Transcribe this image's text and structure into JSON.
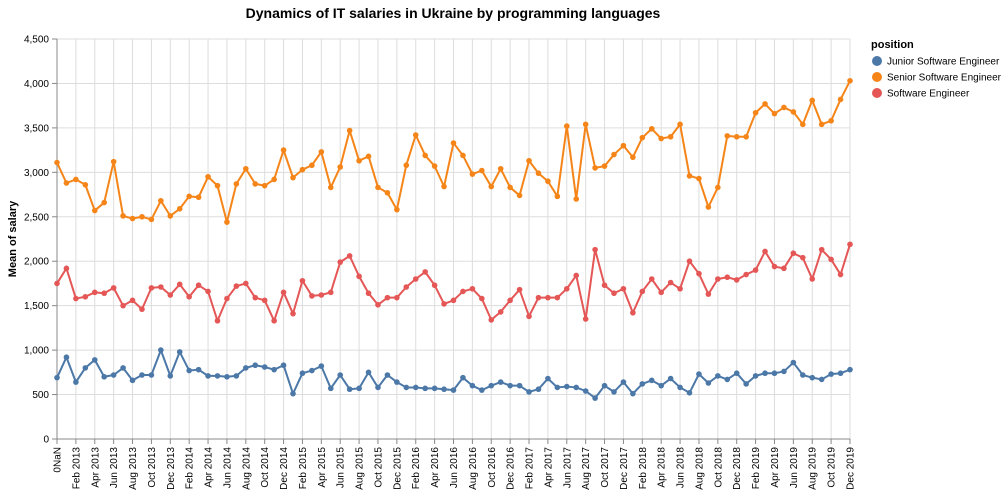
{
  "chart_data": {
    "type": "line",
    "title": "Dynamics of IT salaries in Ukraine by programming languages",
    "xlabel": "",
    "ylabel": "Mean of salary",
    "ylim": [
      0,
      4500
    ],
    "y_ticks": [
      "0",
      "500",
      "1,000",
      "1,500",
      "2,000",
      "2,500",
      "3,000",
      "3,500",
      "4,000",
      "4,500"
    ],
    "x_tick_labels": [
      "0NaN",
      "Feb 2013",
      "Apr 2013",
      "Jun 2013",
      "Aug 2013",
      "Oct 2013",
      "Dec 2013",
      "Feb 2014",
      "Apr 2014",
      "Jun 2014",
      "Aug 2014",
      "Oct 2014",
      "Dec 2014",
      "Feb 2015",
      "Apr 2015",
      "Jun 2015",
      "Aug 2015",
      "Oct 2015",
      "Dec 2015",
      "Feb 2016",
      "Apr 2016",
      "Jun 2016",
      "Aug 2016",
      "Oct 2016",
      "Dec 2016",
      "Feb 2017",
      "Apr 2017",
      "Jun 2017",
      "Aug 2017",
      "Oct 2017",
      "Dec 2017",
      "Feb 2018",
      "Apr 2018",
      "Jun 2018",
      "Aug 2018",
      "Oct 2018",
      "Dec 2018",
      "Feb 2019",
      "Apr 2019",
      "Jun 2019",
      "Aug 2019",
      "Oct 2019",
      "Dec 2019"
    ],
    "legend_title": "position",
    "legend_position": "top-right",
    "grid": true,
    "series": [
      {
        "name": "Junior Software Engineer",
        "color": "#4c78a8",
        "values": [
          690,
          920,
          640,
          800,
          890,
          700,
          720,
          800,
          660,
          720,
          720,
          1000,
          710,
          980,
          770,
          780,
          710,
          710,
          700,
          710,
          800,
          830,
          810,
          780,
          830,
          510,
          740,
          770,
          820,
          570,
          720,
          560,
          570,
          750,
          580,
          720,
          640,
          580,
          580,
          570,
          570,
          560,
          550,
          690,
          600,
          550,
          600,
          640,
          600,
          600,
          530,
          560,
          680,
          580,
          590,
          580,
          540,
          460,
          600,
          530,
          640,
          510,
          620,
          660,
          600,
          680,
          580,
          520,
          730,
          630,
          710,
          670,
          740,
          620,
          710,
          740,
          740,
          760,
          860,
          720,
          690,
          670,
          730,
          740,
          780
        ]
      },
      {
        "name": "Senior Software Engineer",
        "color": "#f58518",
        "values": [
          3110,
          2880,
          2920,
          2860,
          2570,
          2660,
          3120,
          2510,
          2480,
          2500,
          2470,
          2680,
          2510,
          2590,
          2730,
          2720,
          2950,
          2850,
          2440,
          2870,
          3040,
          2870,
          2850,
          2920,
          3250,
          2940,
          3030,
          3080,
          3230,
          2830,
          3060,
          3470,
          3130,
          3180,
          2830,
          2770,
          2580,
          3080,
          3420,
          3190,
          3070,
          2840,
          3330,
          3190,
          2980,
          3020,
          2840,
          3040,
          2830,
          2740,
          3130,
          2990,
          2900,
          2730,
          3520,
          2700,
          3540,
          3050,
          3070,
          3200,
          3300,
          3170,
          3390,
          3490,
          3380,
          3400,
          3540,
          2960,
          2930,
          2610,
          2830,
          3410,
          3400,
          3400,
          3670,
          3770,
          3660,
          3730,
          3680,
          3540,
          3810,
          3540,
          3580,
          3820,
          4030
        ]
      },
      {
        "name": "Software Engineer",
        "color": "#e45756",
        "values": [
          1750,
          1920,
          1580,
          1600,
          1650,
          1640,
          1700,
          1500,
          1560,
          1460,
          1700,
          1710,
          1620,
          1740,
          1600,
          1730,
          1660,
          1330,
          1580,
          1720,
          1750,
          1590,
          1560,
          1330,
          1650,
          1410,
          1780,
          1610,
          1620,
          1650,
          1990,
          2060,
          1830,
          1640,
          1510,
          1590,
          1590,
          1710,
          1800,
          1880,
          1730,
          1520,
          1560,
          1660,
          1690,
          1580,
          1340,
          1430,
          1560,
          1680,
          1380,
          1590,
          1590,
          1590,
          1690,
          1840,
          1350,
          2130,
          1730,
          1640,
          1690,
          1420,
          1660,
          1800,
          1650,
          1760,
          1690,
          2000,
          1860,
          1630,
          1800,
          1820,
          1790,
          1850,
          1900,
          2110,
          1940,
          1920,
          2090,
          2040,
          1800,
          2130,
          2020,
          1850,
          2190
        ]
      }
    ]
  }
}
